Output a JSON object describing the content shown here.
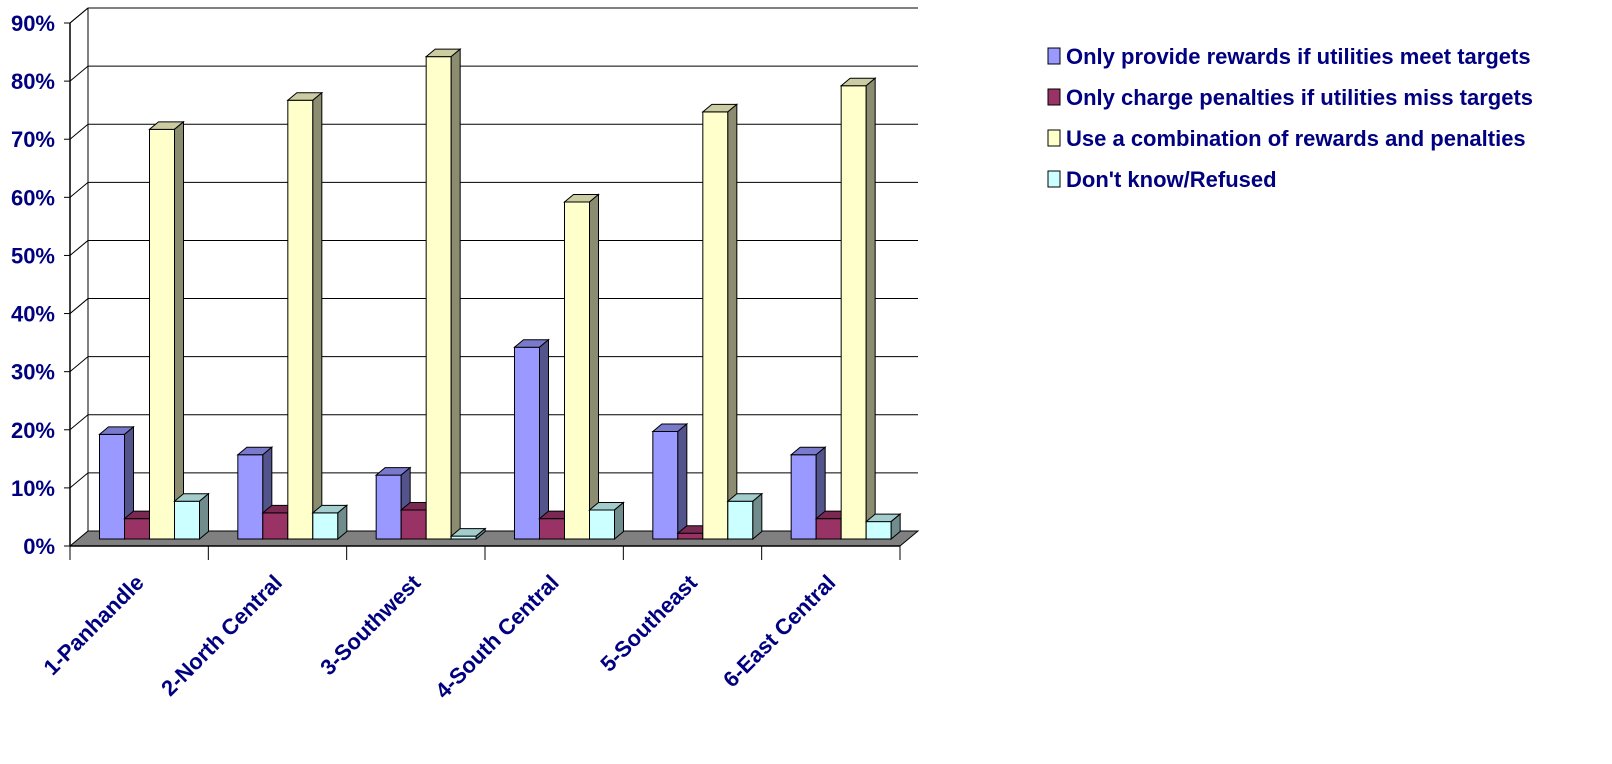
{
  "chart_data": {
    "type": "bar",
    "title": "",
    "xlabel": "",
    "ylabel": "",
    "ylim": [
      0,
      90
    ],
    "yticks": [
      "0%",
      "10%",
      "20%",
      "30%",
      "40%",
      "50%",
      "60%",
      "70%",
      "80%",
      "90%"
    ],
    "grid": true,
    "legend_position": "right",
    "categories": [
      "1-Panhandle",
      "2-North Central",
      "3-Southwest",
      "4-South Central",
      "5-Southeast",
      "6-East Central"
    ],
    "series": [
      {
        "name": "Only provide rewards if utilities meet targets",
        "color": "#9999ff",
        "values": [
          18,
          14.5,
          11,
          33,
          18.5,
          14.5
        ]
      },
      {
        "name": "Only charge penalties if utilities miss targets",
        "color": "#993366",
        "values": [
          3.5,
          4.5,
          5,
          3.5,
          1,
          3.5
        ]
      },
      {
        "name": "Use a combination of rewards and penalties",
        "color": "#ffffcc",
        "values": [
          70.5,
          75.5,
          83,
          58,
          73.5,
          78
        ]
      },
      {
        "name": "Don't know/Refused",
        "color": "#ccffff",
        "values": [
          6.5,
          4.5,
          0.5,
          5,
          6.5,
          3
        ]
      }
    ]
  }
}
